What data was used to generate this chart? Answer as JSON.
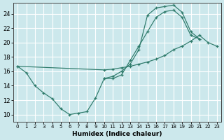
{
  "xlabel": "Humidex (Indice chaleur)",
  "bg_color": "#cce8ec",
  "line_color": "#2d7a6a",
  "grid_color": "#ffffff",
  "xlim": [
    -0.5,
    23.5
  ],
  "ylim": [
    9.0,
    25.5
  ],
  "xticks": [
    0,
    1,
    2,
    3,
    4,
    5,
    6,
    7,
    8,
    9,
    10,
    11,
    12,
    13,
    14,
    15,
    16,
    17,
    18,
    19,
    20,
    21,
    22,
    23
  ],
  "yticks": [
    10,
    12,
    14,
    16,
    18,
    20,
    22,
    24
  ],
  "s1_x": [
    0,
    1,
    2,
    3,
    4,
    5,
    6,
    7,
    8,
    9,
    10,
    11,
    12,
    13,
    14,
    15,
    16,
    17,
    18,
    19,
    20,
    21
  ],
  "s1_y": [
    16.7,
    15.8,
    14.0,
    13.0,
    12.2,
    10.8,
    10.0,
    10.2,
    10.4,
    12.3,
    15.0,
    15.0,
    15.5,
    17.5,
    19.5,
    21.5,
    23.5,
    24.3,
    24.5,
    23.5,
    21.0,
    20.5
  ],
  "s2_x": [
    0,
    10,
    11,
    12,
    13,
    14,
    15,
    16,
    17,
    18,
    19,
    20,
    21,
    22,
    23
  ],
  "s2_y": [
    16.7,
    16.2,
    16.3,
    16.5,
    16.7,
    17.0,
    17.3,
    17.7,
    18.2,
    19.0,
    19.5,
    20.2,
    21.0,
    20.0,
    19.5
  ],
  "s3_x": [
    10,
    11,
    12,
    13,
    14,
    15,
    16,
    17,
    18,
    19,
    20,
    21
  ],
  "s3_y": [
    15.0,
    15.3,
    16.0,
    17.0,
    19.0,
    23.8,
    24.8,
    25.0,
    25.2,
    24.2,
    21.5,
    20.5
  ]
}
